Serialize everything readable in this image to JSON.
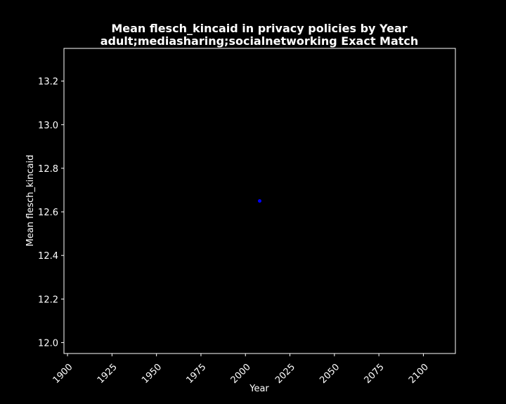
{
  "chart_data": {
    "type": "scatter",
    "title": "Mean flesch_kincaid in privacy policies by Year",
    "subtitle": "adult;mediasharing;socialnetworking Exact Match",
    "xlabel": "Year",
    "ylabel": "Mean flesch_kincaid",
    "xlim": [
      1898,
      2118
    ],
    "ylim": [
      11.95,
      13.35
    ],
    "xticks": [
      1900,
      1925,
      1950,
      1975,
      2000,
      2025,
      2050,
      2075,
      2100
    ],
    "yticks": [
      12.0,
      12.2,
      12.4,
      12.6,
      12.8,
      13.0,
      13.2
    ],
    "grid": false,
    "points": [
      {
        "x": 2008,
        "y": 12.65
      }
    ],
    "colors": {
      "background": "#000000",
      "foreground": "#ffffff",
      "marker": "#0000ff"
    }
  }
}
